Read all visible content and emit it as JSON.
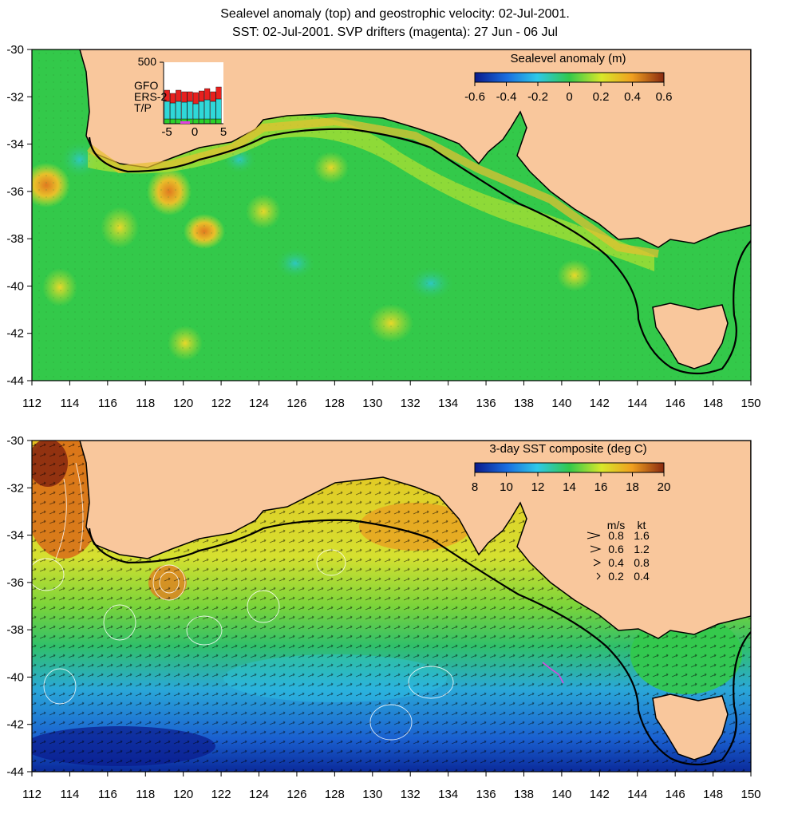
{
  "figure": {
    "title_line1": "Sealevel anomaly (top) and geostrophic velocity: 02-Jul-2001.",
    "title_line2": "SST: 02-Jul-2001. SVP drifters (magenta): 27 Jun - 06 Jul"
  },
  "axes": {
    "lon_ticks": [
      "112",
      "114",
      "116",
      "118",
      "120",
      "122",
      "124",
      "126",
      "128",
      "130",
      "132",
      "134",
      "136",
      "138",
      "140",
      "142",
      "144",
      "146",
      "148",
      "150"
    ],
    "lat_ticks": [
      "-30",
      "-32",
      "-34",
      "-36",
      "-38",
      "-40",
      "-42",
      "-44"
    ]
  },
  "top_panel": {
    "colorbar_title": "Sealevel anomaly (m)",
    "colorbar_ticks": [
      "-0.6",
      "-0.4",
      "-0.2",
      "0",
      "0.2",
      "0.4",
      "0.6"
    ],
    "inset": {
      "ymax_label": "500",
      "series": [
        "GFO",
        "ERS-2",
        "T/P"
      ],
      "series_colors": [
        "#e8201e",
        "#2fd8d8",
        "#2ad12a"
      ],
      "x_ticks": [
        "-5",
        "0",
        "5"
      ]
    }
  },
  "bottom_panel": {
    "colorbar_title": "3-day SST composite (deg C)",
    "colorbar_ticks": [
      "8",
      "10",
      "12",
      "14",
      "16",
      "18",
      "20"
    ],
    "velocity_legend": {
      "header_ms": "m/s",
      "header_kt": "kt",
      "rows": [
        {
          "ms": "0.8",
          "kt": "1.6"
        },
        {
          "ms": "0.6",
          "kt": "1.2"
        },
        {
          "ms": "0.4",
          "kt": "0.8"
        },
        {
          "ms": "0.2",
          "kt": "0.4"
        }
      ]
    }
  },
  "colors": {
    "land": "#f9c79c",
    "ocean_green": "#33c94a",
    "coastline": "#000000",
    "drifter": "#e040e0"
  }
}
